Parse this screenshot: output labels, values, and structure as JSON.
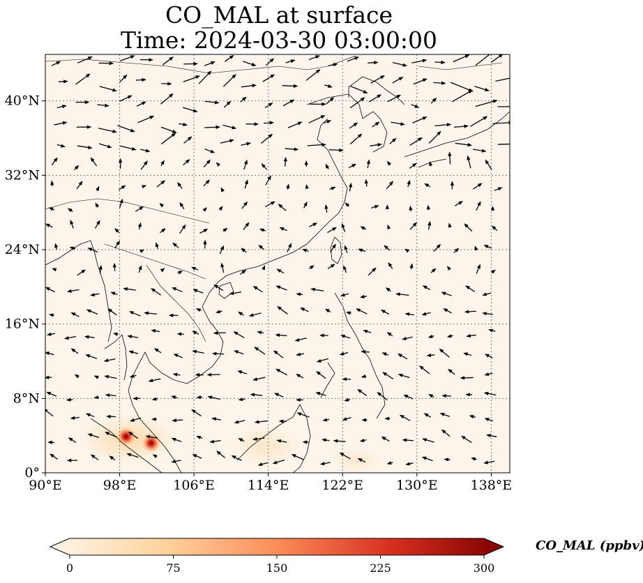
{
  "title": {
    "line1": "CO_MAL at surface",
    "line2": "Time: 2024-03-30 03:00:00"
  },
  "map": {
    "extent": {
      "lon": [
        90,
        140
      ],
      "lat": [
        0,
        45
      ]
    },
    "lon_ticks": [
      {
        "value": 90,
        "label": "90°E"
      },
      {
        "value": 98,
        "label": "98°E"
      },
      {
        "value": 106,
        "label": "106°E"
      },
      {
        "value": 114,
        "label": "114°E"
      },
      {
        "value": 122,
        "label": "122°E"
      },
      {
        "value": 130,
        "label": "130°E"
      },
      {
        "value": 138,
        "label": "138°E"
      }
    ],
    "lat_ticks": [
      {
        "value": 0,
        "label": "0°"
      },
      {
        "value": 8,
        "label": "8°N"
      },
      {
        "value": 16,
        "label": "16°N"
      },
      {
        "value": 24,
        "label": "24°N"
      },
      {
        "value": 32,
        "label": "32°N"
      },
      {
        "value": 40,
        "label": "40°N"
      }
    ],
    "gridlines": true,
    "background_color": "#fdf5eb",
    "hotspots": [
      {
        "lon": 98.7,
        "lat": 3.9,
        "value": 300
      },
      {
        "lon": 101.4,
        "lat": 3.2,
        "value": 300
      }
    ]
  },
  "colorbar": {
    "label": "CO_MAL (ppbv)",
    "min": 0,
    "max": 300,
    "ticks": [
      {
        "value": 0,
        "label": "0"
      },
      {
        "value": 75,
        "label": "75"
      },
      {
        "value": 150,
        "label": "150"
      },
      {
        "value": 225,
        "label": "225"
      },
      {
        "value": 300,
        "label": "300"
      }
    ],
    "colors": [
      "#fff5eb",
      "#fdd49e",
      "#fc8d59",
      "#d7301f",
      "#7f0000"
    ]
  }
}
